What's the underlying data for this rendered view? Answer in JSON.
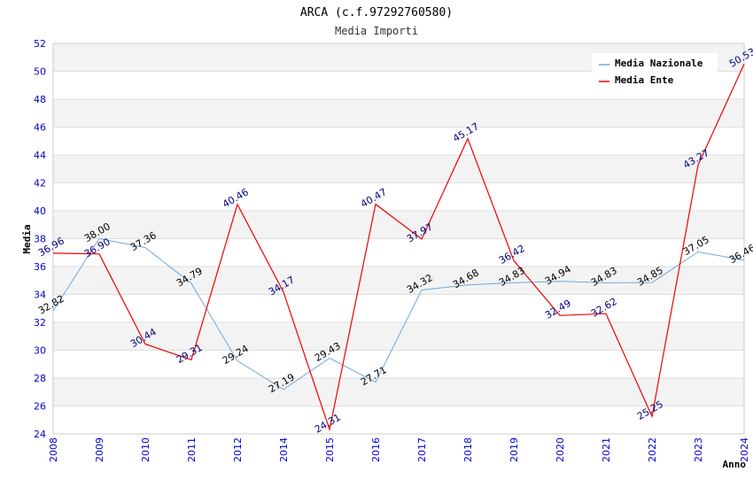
{
  "chart_data": {
    "type": "line",
    "title": "ARCA (c.f.97292760580)",
    "subtitle": "Media Importi",
    "xlabel": "Anno",
    "ylabel": "Media",
    "ylim": [
      24,
      52
    ],
    "yticks": [
      24,
      26,
      28,
      30,
      32,
      34,
      36,
      38,
      40,
      42,
      44,
      46,
      48,
      50,
      52
    ],
    "categories": [
      "2008",
      "2009",
      "2010",
      "2011",
      "2012",
      "2014",
      "2015",
      "2016",
      "2017",
      "2018",
      "2019",
      "2020",
      "2021",
      "2022",
      "2023",
      "2024"
    ],
    "series": [
      {
        "name": "Media Nazionale",
        "color": "#6fa8dc",
        "values": [
          32.82,
          38.0,
          37.36,
          34.79,
          29.24,
          27.19,
          29.43,
          27.71,
          34.32,
          34.68,
          34.83,
          34.94,
          34.83,
          34.85,
          37.05,
          36.46
        ],
        "labels": [
          "32.82",
          "38.00",
          "37.36",
          "34.79",
          "29.24",
          "27.19",
          "29.43",
          "27.71",
          "34.32",
          "34.68",
          "34.83",
          "34.94",
          "34.83",
          "34.85",
          "37.05",
          "36.46"
        ]
      },
      {
        "name": "Media Ente",
        "color": "#ee0000",
        "values": [
          36.96,
          36.9,
          30.44,
          29.31,
          40.46,
          34.17,
          24.31,
          40.47,
          37.97,
          45.17,
          36.42,
          32.49,
          32.62,
          25.25,
          43.27,
          50.53
        ],
        "labels": [
          "36.96",
          "36.90",
          "30.44",
          "29.31",
          "40.46",
          "34.17",
          "24.31",
          "40.47",
          "37.97",
          "45.17",
          "36.42",
          "32.49",
          "32.62",
          "25.25",
          "43.27",
          "50.53"
        ]
      }
    ],
    "legend_position": "top-right",
    "grid": true
  }
}
